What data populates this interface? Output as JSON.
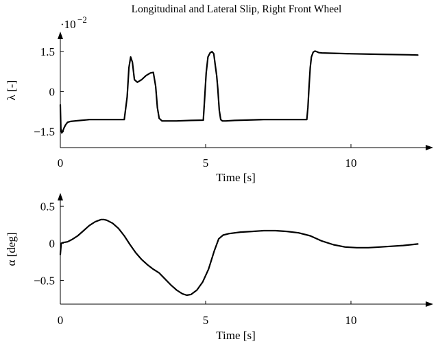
{
  "title": "Longitudinal and Lateral Slip, Right Front Wheel",
  "chart_data": [
    {
      "type": "line",
      "ylabel": "λ [-]",
      "xlabel": "Time [s]",
      "y_scale_note": "·10",
      "y_scale_exp": "−2",
      "xlim": [
        0,
        12.8
      ],
      "ylim": [
        -2.1,
        2.2
      ],
      "xticks": [
        0,
        5,
        10
      ],
      "xtick_labels": [
        "0",
        "5",
        "10"
      ],
      "yticks": [
        -1.5,
        0,
        1.5
      ],
      "ytick_labels": [
        "−1.5",
        "0",
        "1.5"
      ],
      "series": [
        {
          "x": [
            0,
            0.02,
            0.05,
            0.08,
            0.12,
            0.18,
            0.25,
            0.35,
            0.5,
            0.7,
            1.0,
            1.5,
            2.0,
            2.2,
            2.3,
            2.36,
            2.42,
            2.48,
            2.55,
            2.65,
            2.8,
            2.95,
            3.1,
            3.2,
            3.28,
            3.34,
            3.4,
            3.5,
            3.6,
            4.0,
            4.5,
            4.92,
            4.97,
            5.02,
            5.08,
            5.15,
            5.22,
            5.28,
            5.33,
            5.38,
            5.42,
            5.47,
            5.52,
            5.58,
            5.64,
            5.7,
            6.0,
            7.0,
            8.0,
            8.48,
            8.52,
            8.56,
            8.6,
            8.64,
            8.7,
            8.76,
            8.82,
            8.9,
            9.0,
            9.3,
            10.0,
            11.0,
            12.0,
            12.3
          ],
          "y": [
            -0.5,
            -1.4,
            -1.55,
            -1.5,
            -1.38,
            -1.25,
            -1.15,
            -1.12,
            -1.1,
            -1.08,
            -1.05,
            -1.05,
            -1.05,
            -1.05,
            -0.2,
            0.9,
            1.3,
            1.1,
            0.45,
            0.35,
            0.45,
            0.6,
            0.7,
            0.72,
            0.2,
            -0.6,
            -1.0,
            -1.1,
            -1.1,
            -1.1,
            -1.08,
            -1.07,
            -0.2,
            0.7,
            1.3,
            1.45,
            1.5,
            1.42,
            1.0,
            0.6,
            0.1,
            -0.7,
            -1.05,
            -1.1,
            -1.1,
            -1.1,
            -1.08,
            -1.05,
            -1.05,
            -1.05,
            -0.6,
            0.2,
            0.9,
            1.3,
            1.48,
            1.52,
            1.5,
            1.46,
            1.45,
            1.44,
            1.42,
            1.4,
            1.38,
            1.37
          ]
        }
      ]
    },
    {
      "type": "line",
      "ylabel": "α [deg]",
      "xlabel": "Time [s]",
      "xlim": [
        0,
        12.8
      ],
      "ylim": [
        -0.82,
        0.66
      ],
      "xticks": [
        0,
        5,
        10
      ],
      "xtick_labels": [
        "0",
        "5",
        "10"
      ],
      "yticks": [
        -0.5,
        0,
        0.5
      ],
      "ytick_labels": [
        "−0.5",
        "0",
        "0.5"
      ],
      "series": [
        {
          "x": [
            0,
            0.03,
            0.1,
            0.25,
            0.4,
            0.6,
            0.8,
            1.0,
            1.2,
            1.4,
            1.5,
            1.6,
            1.8,
            2.0,
            2.2,
            2.4,
            2.6,
            2.8,
            3.0,
            3.2,
            3.4,
            3.6,
            3.8,
            4.0,
            4.2,
            4.35,
            4.5,
            4.7,
            4.9,
            5.1,
            5.3,
            5.45,
            5.6,
            5.8,
            6.2,
            6.6,
            7.0,
            7.4,
            7.8,
            8.2,
            8.6,
            9.0,
            9.4,
            9.8,
            10.2,
            10.6,
            11.0,
            11.4,
            11.8,
            12.3
          ],
          "y": [
            -0.15,
            0.0,
            0.01,
            0.02,
            0.05,
            0.1,
            0.17,
            0.24,
            0.29,
            0.32,
            0.32,
            0.31,
            0.27,
            0.2,
            0.1,
            -0.02,
            -0.13,
            -0.22,
            -0.29,
            -0.35,
            -0.4,
            -0.48,
            -0.56,
            -0.63,
            -0.68,
            -0.7,
            -0.69,
            -0.63,
            -0.52,
            -0.35,
            -0.1,
            0.06,
            0.11,
            0.13,
            0.15,
            0.16,
            0.17,
            0.17,
            0.16,
            0.14,
            0.1,
            0.03,
            -0.02,
            -0.05,
            -0.06,
            -0.06,
            -0.05,
            -0.04,
            -0.03,
            -0.01
          ]
        }
      ]
    }
  ]
}
